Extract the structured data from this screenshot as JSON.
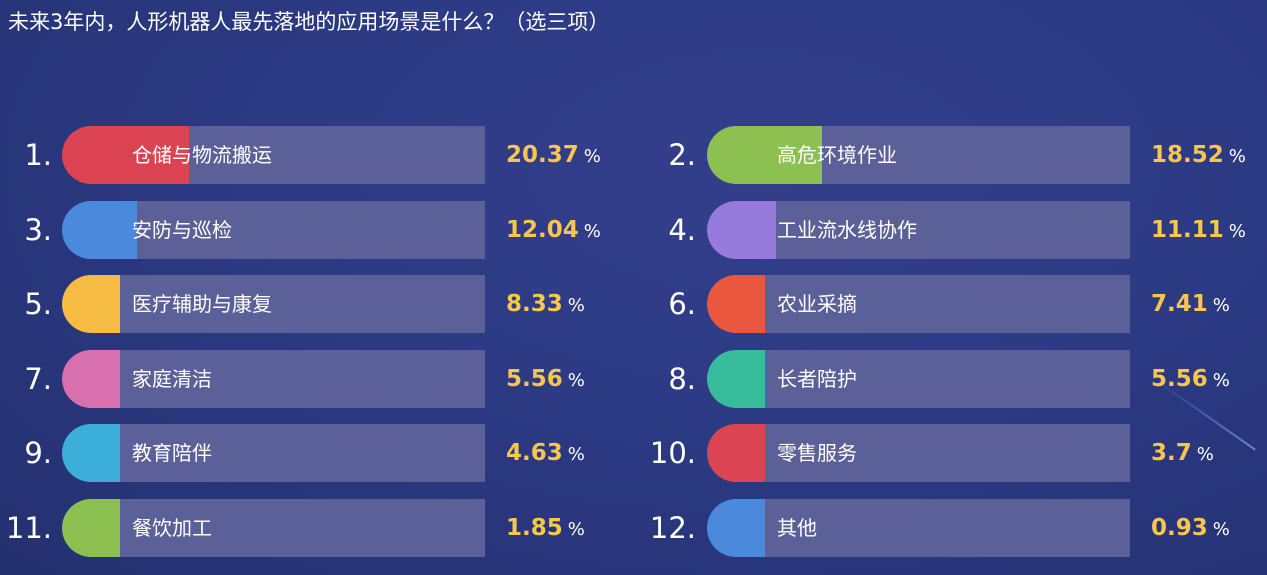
{
  "chart_data": {
    "type": "bar",
    "title": "未来3年内，人形机器人最先落地的应用场景是什么？（选三项）",
    "unit": "%",
    "categories": [
      "仓储与物流搬运",
      "高危环境作业",
      "安防与巡检",
      "工业流水线协作",
      "医疗辅助与康复",
      "农业采摘",
      "家庭清洁",
      "长者陪护",
      "教育陪伴",
      "零售服务",
      "餐饮加工",
      "其他"
    ],
    "ranks": [
      "1.",
      "2.",
      "3.",
      "4.",
      "5.",
      "6.",
      "7.",
      "8.",
      "9.",
      "10.",
      "11.",
      "12."
    ],
    "value_labels": [
      "20.37",
      "18.52",
      "12.04",
      "11.11",
      "8.33",
      "7.41",
      "5.56",
      "5.56",
      "4.63",
      "3.7",
      "1.85",
      "0.93"
    ],
    "values": [
      20.37,
      18.52,
      12.04,
      11.11,
      8.33,
      7.41,
      5.56,
      5.56,
      4.63,
      3.7,
      1.85,
      0.93
    ],
    "bar_colors": [
      "#dc4352",
      "#8cc152",
      "#4a89dc",
      "#967adc",
      "#f6bb42",
      "#e9573f",
      "#d770ad",
      "#37bc9b",
      "#3bafda",
      "#da4453",
      "#8cc152",
      "#4a89dc"
    ],
    "track_color": "#5c6098",
    "value_color": "#f7c64d"
  }
}
